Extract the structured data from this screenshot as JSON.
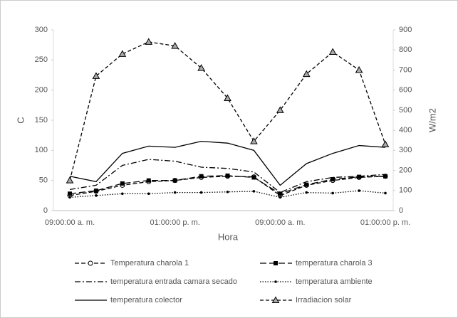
{
  "chart_data": {
    "type": "line",
    "categories": [
      "09:00:00 a. m.",
      null,
      null,
      null,
      "01:00:00 p. m.",
      null,
      null,
      null,
      "09:00:00 a. m.",
      null,
      null,
      null,
      "01:00:00 p. m."
    ],
    "x_label": "Hora",
    "y_label": "C",
    "y2_label": "W/m2",
    "ylim": [
      0,
      300
    ],
    "yticks": [
      0,
      50,
      100,
      150,
      200,
      250,
      300
    ],
    "y2lim": [
      0,
      900
    ],
    "y2ticks": [
      0,
      100,
      200,
      300,
      400,
      500,
      600,
      700,
      800,
      900
    ],
    "grid": false,
    "legend": "bottom",
    "series": [
      {
        "name": "Temperatura charola 1",
        "color": "#000000",
        "dash": "6,3",
        "marker": "circle",
        "values": [
          25,
          32,
          42,
          48,
          50,
          55,
          57,
          56,
          25,
          42,
          50,
          55,
          57
        ]
      },
      {
        "name": "temperatura charola 3",
        "color": "#000000",
        "dash": "9,4",
        "marker": "square",
        "values": [
          28,
          33,
          45,
          50,
          50,
          57,
          58,
          55,
          28,
          43,
          52,
          56,
          57
        ]
      },
      {
        "name": "temperatura entrada camara secado",
        "color": "#000000",
        "dash": "8,3,2,3",
        "marker": "none",
        "values": [
          35,
          42,
          75,
          85,
          82,
          72,
          70,
          64,
          30,
          48,
          55,
          57,
          60
        ]
      },
      {
        "name": "temperatura ambiente",
        "color": "#000000",
        "dash": "1.5,2",
        "marker": "dot",
        "values": [
          22,
          25,
          28,
          28,
          30,
          30,
          31,
          32,
          22,
          30,
          29,
          33,
          29
        ]
      },
      {
        "name": "temperatura colector",
        "color": "#000000",
        "dash": "none",
        "marker": "none",
        "values": [
          57,
          48,
          95,
          107,
          105,
          115,
          112,
          100,
          42,
          78,
          95,
          108,
          105
        ]
      },
      {
        "name": "Irradiacion solar",
        "color": "#000000",
        "dash": "5,3",
        "marker": "triangle",
        "axis": "y2",
        "values": [
          150,
          670,
          780,
          840,
          820,
          710,
          560,
          345,
          500,
          680,
          790,
          700,
          330
        ]
      }
    ]
  }
}
